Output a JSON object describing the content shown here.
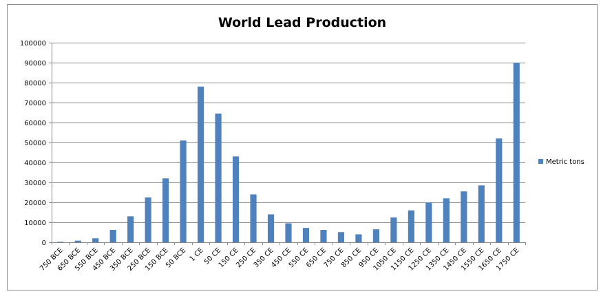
{
  "chart_data": {
    "type": "bar",
    "title": "World Lead Production",
    "xlabel": "",
    "ylabel": "",
    "ylim": [
      0,
      100000
    ],
    "yticks": [
      0,
      10000,
      20000,
      30000,
      40000,
      50000,
      60000,
      70000,
      80000,
      90000,
      100000
    ],
    "grid": true,
    "legend_position": "right",
    "categories": [
      "750 BCE",
      "650 BCE",
      "550 BCE",
      "450 BCE",
      "350 BCE",
      "250 BCE",
      "150 BCE",
      "50 BCE",
      "1 CE",
      "50 CE",
      "150 CE",
      "250 CE",
      "350 CE",
      "450 CE",
      "550 CE",
      "650 CE",
      "750 CE",
      "850 CE",
      "950 CE",
      "1050 CE",
      "1150 CE",
      "1250 CE",
      "1350 CE",
      "1450 CE",
      "1550 CE",
      "1650 CE",
      "1750 CE"
    ],
    "series": [
      {
        "name": "Metric tons",
        "color": "#4F81BD",
        "values": [
          300,
          800,
          2000,
          6200,
          13000,
          22500,
          32000,
          51000,
          78000,
          64500,
          43000,
          24000,
          14000,
          9500,
          7200,
          6200,
          5100,
          4000,
          6500,
          12500,
          16000,
          20000,
          22000,
          25500,
          28500,
          52000,
          90000
        ]
      }
    ]
  }
}
